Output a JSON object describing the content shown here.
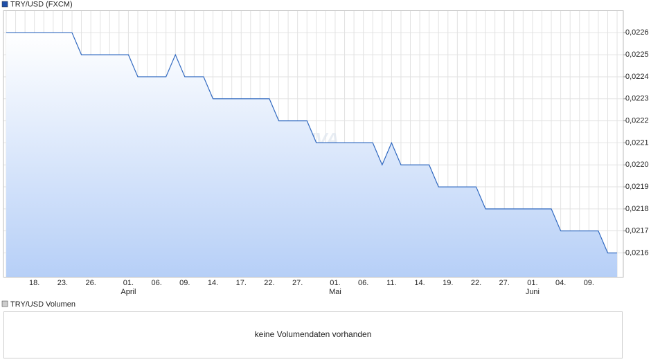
{
  "chart_data": {
    "type": "line",
    "legend": "TRY/USD (FXCM)",
    "watermark": "ARIVA",
    "color": "#2f68c0",
    "grid": true,
    "categories": [
      null,
      null,
      null,
      "18.",
      null,
      null,
      "23.",
      null,
      null,
      "26.",
      null,
      null,
      null,
      "01.",
      null,
      null,
      "06.",
      null,
      null,
      "09.",
      null,
      null,
      "14.",
      null,
      null,
      "17.",
      null,
      null,
      "22.",
      null,
      null,
      "27.",
      null,
      null,
      null,
      "01.",
      null,
      null,
      "06.",
      null,
      null,
      "11.",
      null,
      null,
      "14.",
      null,
      null,
      "19.",
      null,
      null,
      "22.",
      null,
      null,
      "27.",
      null,
      null,
      "01.",
      null,
      null,
      "04.",
      null,
      null,
      "09.",
      null,
      null,
      null
    ],
    "month_categories": [
      null,
      null,
      null,
      null,
      null,
      null,
      null,
      null,
      null,
      null,
      null,
      null,
      null,
      "April",
      null,
      null,
      null,
      null,
      null,
      null,
      null,
      null,
      null,
      null,
      null,
      null,
      null,
      null,
      null,
      null,
      null,
      null,
      null,
      null,
      null,
      "Mai",
      null,
      null,
      null,
      null,
      null,
      null,
      null,
      null,
      null,
      null,
      null,
      null,
      null,
      null,
      null,
      null,
      null,
      null,
      null,
      null,
      "Juni",
      null,
      null,
      null,
      null,
      null,
      null,
      null,
      null,
      null
    ],
    "values": [
      0.0226,
      0.0226,
      0.0226,
      0.0226,
      0.0226,
      0.0226,
      0.0226,
      0.0226,
      0.0225,
      0.0225,
      0.0225,
      0.0225,
      0.0225,
      0.0225,
      0.0224,
      0.0224,
      0.0224,
      0.0224,
      0.0225,
      0.0224,
      0.0224,
      0.0224,
      0.0223,
      0.0223,
      0.0223,
      0.0223,
      0.0223,
      0.0223,
      0.0223,
      0.0222,
      0.0222,
      0.0222,
      0.0222,
      0.0221,
      0.0221,
      0.0221,
      0.0221,
      0.0221,
      0.0221,
      0.0221,
      0.022,
      0.0221,
      0.022,
      0.022,
      0.022,
      0.022,
      0.0219,
      0.0219,
      0.0219,
      0.0219,
      0.0219,
      0.0218,
      0.0218,
      0.0218,
      0.0218,
      0.0218,
      0.0218,
      0.0218,
      0.0218,
      0.0217,
      0.0217,
      0.0217,
      0.0217,
      0.0217,
      0.0216,
      0.0216
    ],
    "ylim": [
      0.02149,
      0.0227
    ],
    "yticks": [
      {
        "value": 0.0216,
        "label": "0,0216"
      },
      {
        "value": 0.0217,
        "label": "0,0217"
      },
      {
        "value": 0.0218,
        "label": "0,0218"
      },
      {
        "value": 0.0219,
        "label": "0,0219"
      },
      {
        "value": 0.022,
        "label": "0,0220"
      },
      {
        "value": 0.0221,
        "label": "0,0221"
      },
      {
        "value": 0.0222,
        "label": "0,0222"
      },
      {
        "value": 0.0223,
        "label": "0,0223"
      },
      {
        "value": 0.0224,
        "label": "0,0224"
      },
      {
        "value": 0.0225,
        "label": "0,0225"
      },
      {
        "value": 0.0226,
        "label": "0,0226"
      }
    ]
  },
  "volume_panel": {
    "legend": "TRY/USD Volumen",
    "message": "keine Volumendaten vorhanden"
  }
}
